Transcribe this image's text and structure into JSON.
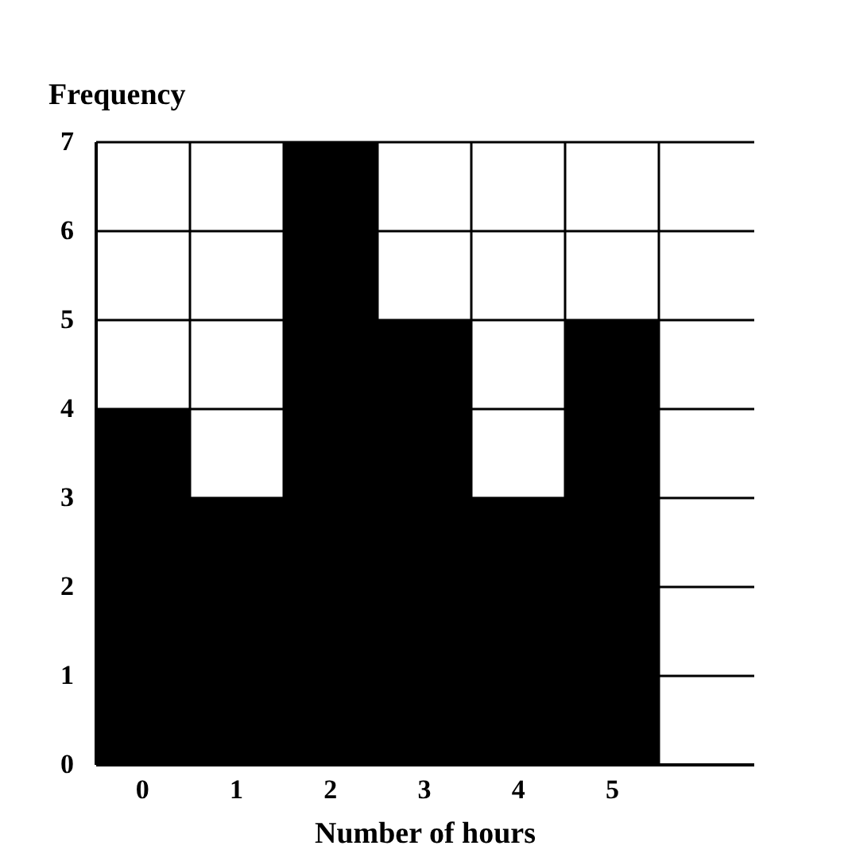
{
  "chart_data": {
    "type": "bar",
    "xlabel": "Number of hours",
    "ylabel": "Frequency",
    "categories": [
      "0",
      "1",
      "2",
      "3",
      "4",
      "5",
      null
    ],
    "values": [
      4,
      3,
      7,
      5,
      3,
      5,
      null
    ],
    "color": "#000000",
    "ylim": [
      0,
      7
    ],
    "yticks": [
      0,
      1,
      2,
      3,
      4,
      5,
      6,
      7
    ],
    "grid": true
  }
}
